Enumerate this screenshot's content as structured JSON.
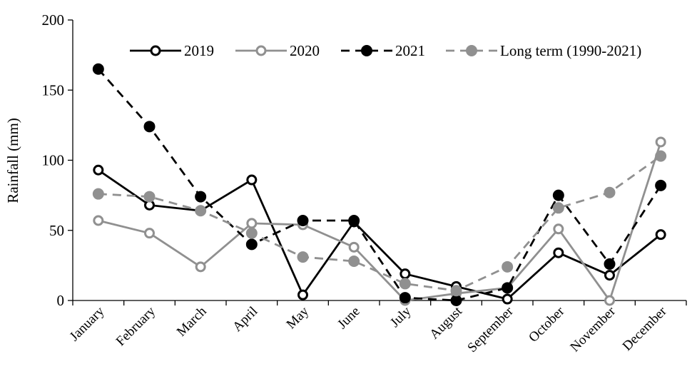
{
  "chart_data": {
    "type": "line",
    "title": "",
    "xlabel": "",
    "ylabel": "Rainfall (mm)",
    "ylim": [
      0,
      200
    ],
    "yticks": [
      0,
      50,
      100,
      150,
      200
    ],
    "grid": false,
    "legend_position": "top-right",
    "categories": [
      "January",
      "February",
      "March",
      "April",
      "May",
      "June",
      "July",
      "August",
      "September",
      "October",
      "November",
      "December"
    ],
    "series": [
      {
        "name": "2019",
        "line": "solid",
        "color": "#000000",
        "marker": "open-circle",
        "values": [
          93,
          68,
          64,
          86,
          4,
          56,
          19,
          10,
          1,
          34,
          18,
          47
        ]
      },
      {
        "name": "2020",
        "line": "solid",
        "color": "#909090",
        "marker": "open-circle",
        "values": [
          57,
          48,
          24,
          55,
          54,
          38,
          0,
          5,
          9,
          51,
          0,
          113
        ]
      },
      {
        "name": "2021",
        "line": "dashed",
        "color": "#000000",
        "marker": "filled-circle",
        "values": [
          165,
          124,
          74,
          40,
          57,
          57,
          2,
          0,
          9,
          75,
          26,
          82
        ]
      },
      {
        "name": "Long term (1990-2021)",
        "line": "dashed",
        "color": "#909090",
        "marker": "filled-circle",
        "values": [
          76,
          74,
          64,
          48,
          31,
          28,
          12,
          7,
          24,
          66,
          77,
          103
        ]
      }
    ]
  }
}
